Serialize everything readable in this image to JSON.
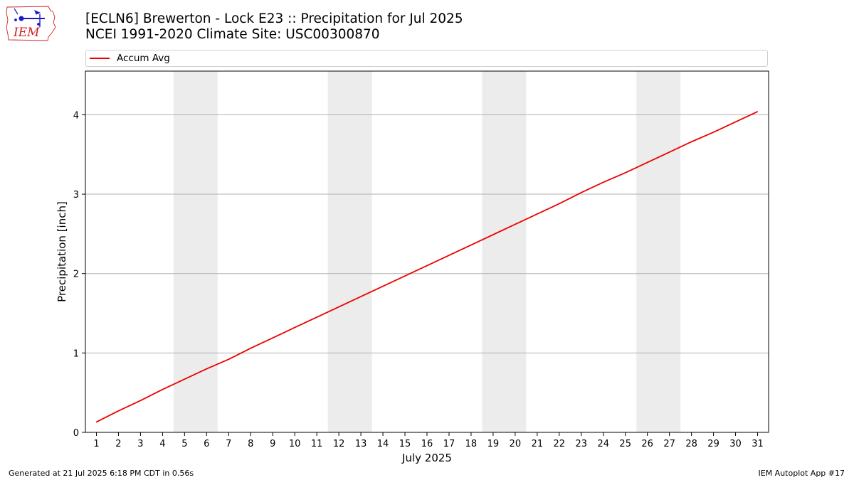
{
  "header": {
    "title_line1": "[ECLN6] Brewerton - Lock E23 :: Precipitation for Jul 2025",
    "title_line2": "NCEI 1991-2020 Climate Site: USC00300870",
    "logo_text": "IEM"
  },
  "footer": {
    "generated": "Generated at 21 Jul 2025 6:18 PM CDT in 0.56s",
    "app": "IEM Autoplot App #17"
  },
  "colors": {
    "line": "#ee0000",
    "weekend_band": "#ececec",
    "grid": "#b0b0b0",
    "logo_red": "#cc2222",
    "logo_blue": "#1a1acc"
  },
  "chart_data": {
    "type": "line",
    "xlabel": "July 2025",
    "ylabel": "Precipitation [inch]",
    "x": [
      1,
      2,
      3,
      4,
      5,
      6,
      7,
      8,
      9,
      10,
      11,
      12,
      13,
      14,
      15,
      16,
      17,
      18,
      19,
      20,
      21,
      22,
      23,
      24,
      25,
      26,
      27,
      28,
      29,
      30,
      31
    ],
    "xlim": [
      0.5,
      31.5
    ],
    "ylim": [
      0,
      4.55
    ],
    "yticks": [
      0,
      1,
      2,
      3,
      4
    ],
    "grid": "horizontal",
    "legend_position": "top",
    "shaded_weekend_days": [
      [
        5,
        6
      ],
      [
        12,
        13
      ],
      [
        19,
        20
      ],
      [
        26,
        27
      ]
    ],
    "series": [
      {
        "name": "Accum Avg",
        "values": [
          0.13,
          0.27,
          0.4,
          0.54,
          0.67,
          0.8,
          0.92,
          1.06,
          1.19,
          1.32,
          1.45,
          1.58,
          1.71,
          1.84,
          1.97,
          2.1,
          2.23,
          2.36,
          2.49,
          2.62,
          2.75,
          2.88,
          3.02,
          3.15,
          3.27,
          3.4,
          3.53,
          3.66,
          3.78,
          3.91,
          4.04
        ]
      }
    ]
  }
}
